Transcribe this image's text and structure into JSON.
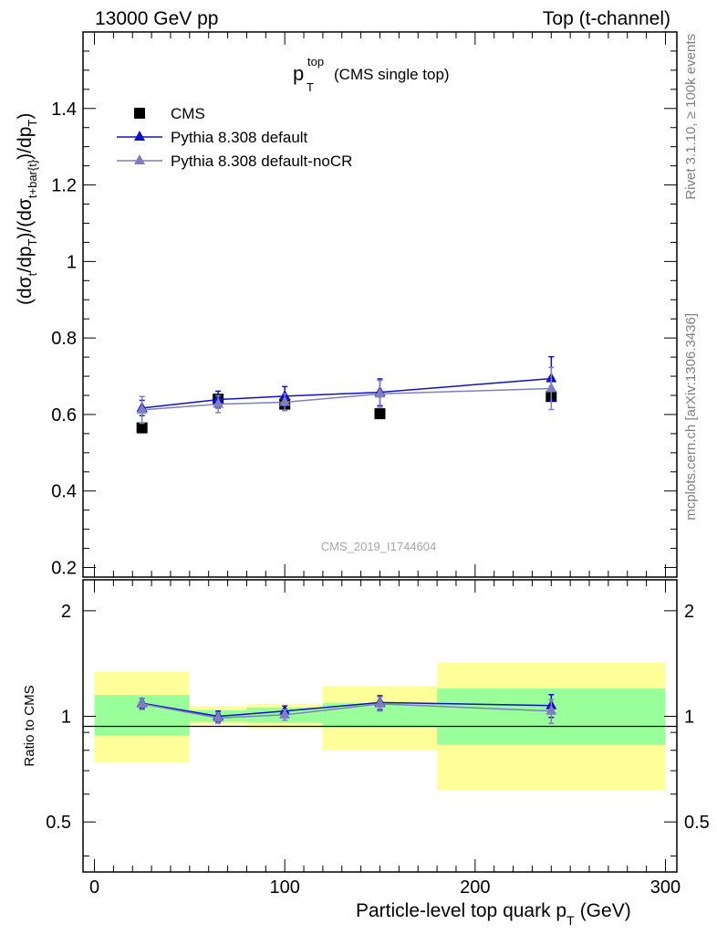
{
  "header": {
    "left": "13000 GeV pp",
    "right": "Top (t-channel)"
  },
  "plot_title": {
    "main": "p",
    "sup": "top",
    "sub": "T",
    "paren": "(CMS single top)"
  },
  "side_text": {
    "rivet": "Rivet 3.1.10, ≥ 100k events",
    "mcplots": "mcplots.cern.ch [arXiv:1306.3436]"
  },
  "watermark": "CMS_2019_I1744604",
  "ylabel_main": {
    "t1": "(dσ",
    "s1": "t",
    "t2": "/dp",
    "s2": "T",
    "t3": ")/(dσ",
    "s3": "t+bar{t}",
    "t4": ")/dp",
    "s4": "T",
    "t5": ")"
  },
  "ylabel_ratio": "Ratio to CMS",
  "xlabel": {
    "text": "Particle-level top quark p",
    "sub": "T",
    "unit": "(GeV)"
  },
  "legend": [
    {
      "label": "CMS",
      "marker": "square",
      "color": "#000000"
    },
    {
      "label": "Pythia 8.308 default",
      "marker": "triangle",
      "color": "#1010cc"
    },
    {
      "label": "Pythia 8.308 default-noCR",
      "marker": "triangle",
      "color": "#7f7fbf"
    }
  ],
  "chart_data": {
    "type": "scatter",
    "x_ticks": [
      "0",
      "100",
      "200",
      "300"
    ],
    "main_y_ticks": [
      "0.2",
      "0.4",
      "0.6",
      "0.8",
      "1",
      "1.2",
      "1.4"
    ],
    "ratio_y_ticks": [
      "0.5",
      "1",
      "2"
    ],
    "xlim": [
      -6,
      306
    ],
    "main_ylim": [
      0.175,
      1.6
    ],
    "ratio_ylim": [
      0.36,
      2.45
    ],
    "ratio_log": true,
    "bins": [
      [
        0,
        50
      ],
      [
        50,
        80
      ],
      [
        80,
        120
      ],
      [
        120,
        180
      ],
      [
        180,
        300
      ]
    ],
    "x": [
      25,
      65,
      100,
      150,
      240
    ],
    "series": [
      {
        "name": "CMS",
        "color": "#000000",
        "marker": "square",
        "values": [
          0.565,
          0.64,
          0.627,
          0.602,
          0.647
        ]
      },
      {
        "name": "Pythia 8.308 default",
        "color": "#1010cc",
        "marker": "triangle",
        "values": [
          0.617,
          0.639,
          0.648,
          0.658,
          0.694
        ],
        "errors": [
          0.02,
          0.022,
          0.025,
          0.035,
          0.057
        ]
      },
      {
        "name": "Pythia 8.308 default-noCR",
        "color": "#7f7fbf",
        "marker": "triangle",
        "values": [
          0.612,
          0.627,
          0.632,
          0.654,
          0.668
        ],
        "errors": [
          0.035,
          0.022,
          0.022,
          0.035,
          0.055
        ]
      }
    ],
    "ratio_series": [
      {
        "name": "Pythia 8.308 default",
        "color": "#1010cc",
        "values": [
          1.09,
          1.0,
          1.035,
          1.095,
          1.073
        ],
        "errors": [
          0.035,
          0.035,
          0.035,
          0.05,
          0.08
        ]
      },
      {
        "name": "Pythia 8.308 default-noCR",
        "color": "#7f7fbf",
        "values": [
          1.085,
          0.99,
          1.01,
          1.085,
          1.035
        ],
        "errors": [
          0.04,
          0.035,
          0.035,
          0.05,
          0.08
        ]
      }
    ],
    "ratio_bands": {
      "stat_color": "#99ff99",
      "total_color": "#ffff99",
      "stat": [
        [
          0.88,
          1.15
        ],
        [
          0.965,
          1.04
        ],
        [
          0.96,
          1.06
        ],
        [
          0.93,
          1.09
        ],
        [
          0.83,
          1.2
        ]
      ],
      "total": [
        [
          0.74,
          1.34
        ],
        [
          0.945,
          1.07
        ],
        [
          0.925,
          1.085
        ],
        [
          0.8,
          1.22
        ],
        [
          0.615,
          1.42
        ]
      ]
    }
  }
}
